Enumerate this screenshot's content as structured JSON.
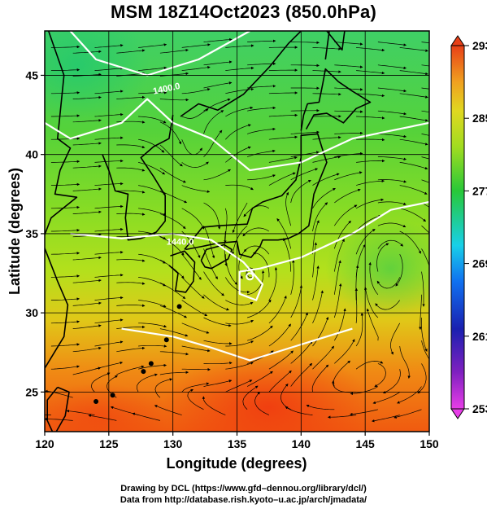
{
  "title": "MSM 18Z14Oct2023 (850.0hPa)",
  "map": {
    "extent": {
      "lon": [
        120,
        150
      ],
      "lat": [
        22.5,
        47.8
      ]
    },
    "x_axis": {
      "label": "Longitude (degrees)",
      "ticks": [
        120,
        125,
        130,
        135,
        140,
        145,
        150
      ]
    },
    "y_axis": {
      "label": "Latitude  (degrees)",
      "ticks": [
        25,
        30,
        35,
        40,
        45
      ]
    },
    "colorbar": {
      "min": 253,
      "max": 293,
      "ticks": [
        253,
        261,
        269,
        277,
        285,
        293
      ],
      "colors": [
        "#e83ee8",
        "#3a1aa8",
        "#1040e0",
        "#18c8f0",
        "#20c040",
        "#88dc20",
        "#d0e020",
        "#f0b020",
        "#f04010"
      ]
    },
    "contours": [
      {
        "label": "1400.0"
      },
      {
        "label": "1440.0"
      }
    ],
    "typhoon_center": {
      "lon": 136,
      "lat": 32.3
    }
  },
  "credits": {
    "line1": "Drawing by DCL (https://www.gfd–dennou.org/library/dcl/)",
    "line2": "Data from http://database.rish.kyoto–u.ac.jp/arch/jmadata/"
  }
}
